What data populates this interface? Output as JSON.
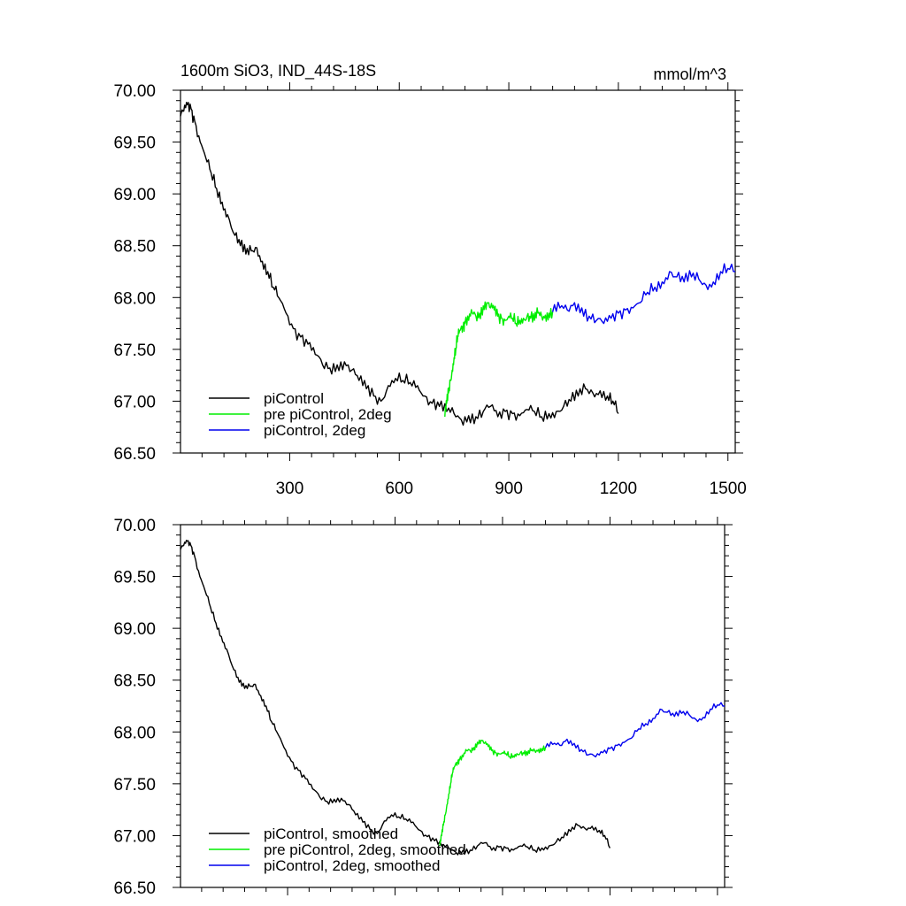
{
  "chart_data": [
    {
      "type": "line",
      "title": "1600m SiO3, IND_44S-18S",
      "units": "mmol/m^3",
      "xlim": [
        1,
        1520
      ],
      "ylim": [
        66.5,
        70.0
      ],
      "yticks": [
        "70.00",
        "69.50",
        "69.00",
        "68.50",
        "68.00",
        "67.50",
        "67.00",
        "66.50"
      ],
      "xticks": [
        "300",
        "600",
        "900",
        "1200",
        "1500"
      ],
      "series": [
        {
          "name": "piControl",
          "color": "#000000",
          "x": [
            1,
            10,
            20,
            30,
            40,
            55,
            70,
            85,
            100,
            115,
            130,
            150,
            165,
            180,
            195,
            210,
            225,
            240,
            255,
            270,
            290,
            310,
            330,
            350,
            370,
            390,
            410,
            430,
            450,
            470,
            490,
            510,
            530,
            550,
            570,
            590,
            610,
            630,
            650,
            670,
            690,
            710,
            730,
            750,
            770,
            790,
            810,
            830,
            850,
            870,
            890,
            910,
            930,
            950,
            970,
            990,
            1010,
            1030,
            1050,
            1070,
            1090,
            1110,
            1130,
            1150,
            1170,
            1185,
            1200
          ],
          "y": [
            69.75,
            69.8,
            69.86,
            69.82,
            69.7,
            69.5,
            69.35,
            69.2,
            69.05,
            68.92,
            68.8,
            68.6,
            68.5,
            68.42,
            68.45,
            68.48,
            68.35,
            68.25,
            68.1,
            68.0,
            67.85,
            67.7,
            67.62,
            67.55,
            67.45,
            67.35,
            67.32,
            67.35,
            67.38,
            67.3,
            67.2,
            67.12,
            67.05,
            67.0,
            67.15,
            67.22,
            67.2,
            67.18,
            67.15,
            67.05,
            66.98,
            66.95,
            66.9,
            66.88,
            66.82,
            66.86,
            66.85,
            66.9,
            66.95,
            66.85,
            66.9,
            66.88,
            66.86,
            66.92,
            66.9,
            66.85,
            66.88,
            66.9,
            66.95,
            67.0,
            67.05,
            67.12,
            67.08,
            67.1,
            67.05,
            67.0,
            66.88
          ]
        },
        {
          "name": "pre piControl, 2deg",
          "color": "#00ee00",
          "x": [
            725,
            730,
            735,
            740,
            745,
            750,
            755,
            760,
            765,
            770,
            775,
            780,
            790,
            800,
            810,
            820,
            830,
            840,
            850,
            860,
            870,
            880,
            890,
            900,
            910,
            920,
            930,
            940,
            950,
            960,
            970,
            980,
            990,
            1000,
            1010,
            1020
          ],
          "y": [
            66.85,
            66.98,
            67.08,
            67.2,
            67.3,
            67.42,
            67.5,
            67.62,
            67.68,
            67.72,
            67.72,
            67.75,
            67.78,
            67.85,
            67.82,
            67.85,
            67.92,
            67.95,
            67.9,
            67.88,
            67.82,
            67.8,
            67.78,
            67.82,
            67.8,
            67.75,
            67.78,
            67.8,
            67.82,
            67.8,
            67.78,
            67.85,
            67.82,
            67.83,
            67.85,
            67.86
          ]
        },
        {
          "name": "piControl, 2deg",
          "color": "#0000ee",
          "x": [
            1020,
            1040,
            1060,
            1080,
            1100,
            1120,
            1140,
            1160,
            1180,
            1200,
            1220,
            1240,
            1260,
            1280,
            1300,
            1320,
            1340,
            1360,
            1380,
            1400,
            1420,
            1440,
            1460,
            1480,
            1500,
            1520
          ],
          "y": [
            67.86,
            67.9,
            67.88,
            67.95,
            67.9,
            67.82,
            67.78,
            67.75,
            67.8,
            67.85,
            67.88,
            67.9,
            67.95,
            68.05,
            68.1,
            68.15,
            68.25,
            68.2,
            68.15,
            68.2,
            68.18,
            68.12,
            68.15,
            68.25,
            68.28,
            68.25
          ]
        }
      ]
    },
    {
      "type": "line",
      "xlim": [
        1,
        1520
      ],
      "ylim": [
        66.5,
        70.0
      ],
      "yticks": [
        "70.00",
        "69.50",
        "69.00",
        "68.50",
        "68.00",
        "67.50",
        "67.00",
        "66.50"
      ],
      "series": [
        {
          "name": "piControl, smoothed",
          "color": "#000000",
          "x": [
            1,
            10,
            20,
            30,
            40,
            55,
            70,
            85,
            100,
            115,
            130,
            150,
            165,
            180,
            195,
            210,
            225,
            240,
            255,
            270,
            290,
            310,
            330,
            350,
            370,
            390,
            410,
            430,
            450,
            470,
            490,
            510,
            530,
            550,
            570,
            590,
            610,
            630,
            650,
            670,
            690,
            710,
            730,
            750,
            770,
            790,
            810,
            830,
            850,
            870,
            890,
            910,
            930,
            950,
            970,
            990,
            1010,
            1030,
            1050,
            1070,
            1090,
            1110,
            1130,
            1150,
            1170,
            1185,
            1200
          ],
          "y": [
            69.76,
            69.8,
            69.84,
            69.8,
            69.7,
            69.5,
            69.36,
            69.2,
            69.05,
            68.92,
            68.8,
            68.6,
            68.48,
            68.42,
            68.44,
            68.46,
            68.35,
            68.25,
            68.1,
            68.0,
            67.85,
            67.72,
            67.63,
            67.55,
            67.45,
            67.37,
            67.33,
            67.35,
            67.36,
            67.3,
            67.2,
            67.13,
            67.06,
            67.02,
            67.14,
            67.2,
            67.18,
            67.16,
            67.13,
            67.05,
            66.99,
            66.95,
            66.9,
            66.88,
            66.84,
            66.86,
            66.86,
            66.9,
            66.93,
            66.86,
            66.89,
            66.88,
            66.86,
            66.9,
            66.89,
            66.86,
            66.88,
            66.9,
            66.94,
            66.98,
            67.04,
            67.1,
            67.07,
            67.09,
            67.05,
            67.0,
            66.88
          ]
        },
        {
          "name": "pre piControl, 2deg, smoothed",
          "color": "#00ee00",
          "x": [
            725,
            730,
            735,
            740,
            745,
            750,
            755,
            760,
            765,
            770,
            775,
            780,
            790,
            800,
            810,
            820,
            830,
            840,
            850,
            860,
            870,
            880,
            890,
            900,
            910,
            920,
            930,
            940,
            950,
            960,
            970,
            980,
            990,
            1000,
            1010,
            1020
          ],
          "y": [
            66.9,
            67.0,
            67.1,
            67.2,
            67.3,
            67.4,
            67.5,
            67.6,
            67.66,
            67.7,
            67.71,
            67.73,
            67.76,
            67.82,
            67.82,
            67.85,
            67.9,
            67.92,
            67.89,
            67.86,
            67.82,
            67.8,
            67.79,
            67.8,
            67.79,
            67.76,
            67.77,
            67.79,
            67.8,
            67.79,
            67.78,
            67.82,
            67.82,
            67.83,
            67.84,
            67.85
          ]
        },
        {
          "name": "piControl, 2deg, smoothed",
          "color": "#0000ee",
          "x": [
            1020,
            1040,
            1060,
            1080,
            1100,
            1120,
            1140,
            1160,
            1180,
            1200,
            1220,
            1240,
            1260,
            1280,
            1300,
            1320,
            1340,
            1360,
            1380,
            1400,
            1420,
            1440,
            1460,
            1480,
            1500,
            1520
          ],
          "y": [
            67.85,
            67.88,
            67.87,
            67.93,
            67.89,
            67.83,
            67.78,
            67.76,
            67.8,
            67.84,
            67.87,
            67.9,
            67.94,
            68.03,
            68.08,
            68.13,
            68.22,
            68.19,
            68.15,
            68.18,
            68.17,
            68.12,
            68.14,
            68.22,
            68.26,
            68.25
          ]
        }
      ]
    }
  ]
}
